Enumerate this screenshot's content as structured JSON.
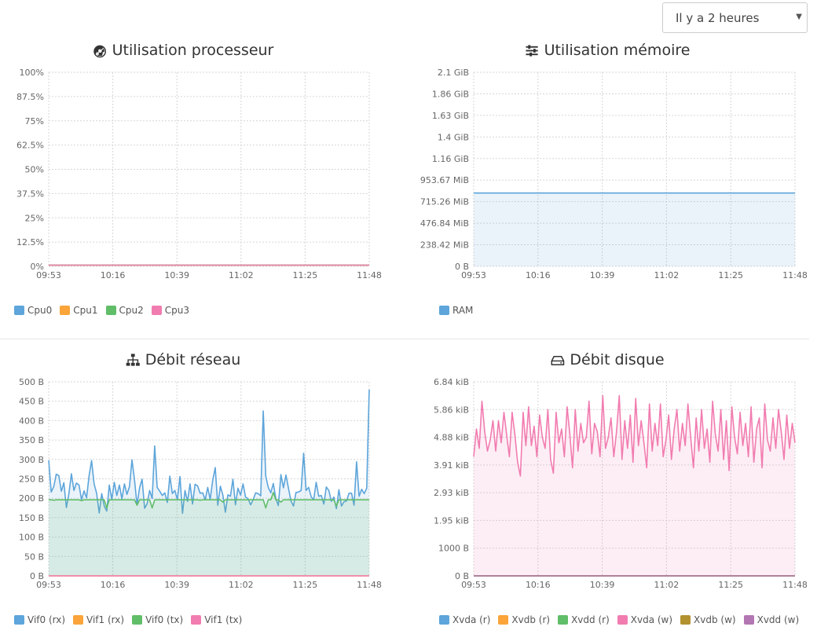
{
  "range_select": {
    "value": "Il y a 2 heures"
  },
  "colors": {
    "blue": "#5da5da",
    "orange": "#faa43a",
    "green": "#60bd68",
    "pink": "#f17cb0",
    "olive": "#b2912f",
    "purple": "#b276b2"
  },
  "chart_data": [
    {
      "id": "cpu",
      "type": "line",
      "title": "Utilisation processeur",
      "icon": "dashboard-icon",
      "x_ticks": [
        "09:53",
        "10:16",
        "10:39",
        "11:02",
        "11:25",
        "11:48"
      ],
      "y_ticks": [
        "100%",
        "87.5%",
        "75%",
        "62.5%",
        "50%",
        "37.5%",
        "25%",
        "12.5%",
        "0%"
      ],
      "ylim": [
        0,
        100
      ],
      "series": [
        {
          "name": "Cpu0",
          "color": "#5da5da",
          "values": [
            0.6,
            0.6,
            0.6,
            0.6,
            0.6,
            0.6
          ]
        },
        {
          "name": "Cpu1",
          "color": "#faa43a",
          "values": [
            0.6,
            0.6,
            0.6,
            0.6,
            0.6,
            0.6
          ]
        },
        {
          "name": "Cpu2",
          "color": "#60bd68",
          "values": [
            0.6,
            0.6,
            0.6,
            0.6,
            0.6,
            0.6
          ]
        },
        {
          "name": "Cpu3",
          "color": "#f17cb0",
          "values": [
            0.6,
            0.6,
            0.6,
            0.6,
            0.6,
            0.6
          ]
        }
      ]
    },
    {
      "id": "mem",
      "type": "area",
      "title": "Utilisation mémoire",
      "icon": "sliders-icon",
      "x_ticks": [
        "09:53",
        "10:16",
        "10:39",
        "11:02",
        "11:25",
        "11:48"
      ],
      "y_ticks": [
        "2.1 GiB",
        "1.86 GiB",
        "1.63 GiB",
        "1.4 GiB",
        "1.16 GiB",
        "953.67 MiB",
        "715.26 MiB",
        "476.84 MiB",
        "238.42 MiB",
        "0 B"
      ],
      "ylim": [
        0,
        9
      ],
      "series": [
        {
          "name": "RAM",
          "color": "#5da5da",
          "values": [
            3.4,
            3.4,
            3.4,
            3.4,
            3.4,
            3.4
          ]
        }
      ]
    },
    {
      "id": "net",
      "type": "area",
      "title": "Débit réseau",
      "icon": "sitemap-icon",
      "x_ticks": [
        "09:53",
        "10:16",
        "10:39",
        "11:02",
        "11:25",
        "11:48"
      ],
      "y_ticks": [
        "500 B",
        "450 B",
        "400 B",
        "350 B",
        "300 B",
        "250 B",
        "200 B",
        "150 B",
        "100 B",
        "50 B",
        "0 B"
      ],
      "ylim": [
        0,
        500
      ],
      "series": [
        {
          "name": "Vif0 (rx)",
          "color": "#5da5da",
          "values": [
            298,
            216,
            230,
            262,
            258,
            218,
            240,
            176,
            212,
            263,
            220,
            239,
            234,
            196,
            219,
            201,
            258,
            297,
            237,
            213,
            162,
            212,
            180,
            167,
            234,
            197,
            241,
            207,
            234,
            198,
            237,
            210,
            230,
            299,
            248,
            183,
            227,
            249,
            174,
            186,
            220,
            199,
            335,
            228,
            218,
            207,
            214,
            189,
            257,
            212,
            220,
            196,
            256,
            161,
            220,
            192,
            237,
            185,
            236,
            232,
            213,
            214,
            196,
            228,
            197,
            247,
            279,
            182,
            231,
            208,
            164,
            209,
            205,
            249,
            183,
            226,
            208,
            237,
            203,
            199,
            183,
            196,
            214,
            212,
            206,
            425,
            257,
            228,
            214,
            238,
            200,
            181,
            261,
            227,
            260,
            226,
            193,
            180,
            215,
            216,
            220,
            316,
            220,
            228,
            204,
            196,
            241,
            205,
            207,
            185,
            229,
            220,
            192,
            203,
            173,
            222,
            180,
            191,
            193,
            213,
            213,
            182,
            294,
            205,
            223,
            212,
            226,
            480
          ]
        },
        {
          "name": "Vif1 (rx)",
          "color": "#faa43a",
          "values": [
            0,
            0,
            0,
            0,
            0,
            0
          ]
        },
        {
          "name": "Vif0 (tx)",
          "color": "#60bd68",
          "values": [
            196,
            196,
            195,
            196,
            196,
            196,
            196,
            196,
            196,
            196,
            196,
            196,
            196,
            194,
            196,
            196,
            196,
            196,
            196,
            196,
            196,
            196,
            196,
            175,
            196,
            196,
            196,
            196,
            196,
            196,
            196,
            196,
            196,
            196,
            196,
            182,
            196,
            196,
            196,
            196,
            196,
            175,
            196,
            196,
            196,
            196,
            196,
            196,
            196,
            196,
            196,
            196,
            196,
            196,
            196,
            196,
            196,
            196,
            196,
            196,
            195,
            196,
            196,
            196,
            196,
            196,
            196,
            196,
            196,
            190,
            196,
            196,
            196,
            196,
            196,
            196,
            196,
            196,
            196,
            196,
            196,
            196,
            196,
            196,
            196,
            196,
            175,
            196,
            196,
            215,
            196,
            196,
            190,
            196,
            196,
            196,
            196,
            196,
            196,
            196,
            196,
            196,
            196,
            196,
            196,
            196,
            196,
            196,
            196,
            196,
            196,
            196,
            196,
            196,
            180,
            196,
            196,
            196,
            196,
            196,
            196,
            196,
            196,
            196,
            196,
            196,
            196,
            196
          ]
        },
        {
          "name": "Vif1 (tx)",
          "color": "#f17cb0",
          "values": [
            0,
            0,
            0,
            0,
            0,
            0
          ]
        }
      ]
    },
    {
      "id": "disk",
      "type": "area",
      "title": "Débit disque",
      "icon": "hdd-icon",
      "x_ticks": [
        "09:53",
        "10:16",
        "10:39",
        "11:02",
        "11:25",
        "11:48"
      ],
      "y_ticks": [
        "6.84 kiB",
        "5.86 kiB",
        "4.88 kiB",
        "3.91 kiB",
        "2.93 kiB",
        "1.95 kiB",
        "1000 B",
        "0 B"
      ],
      "ylim": [
        0,
        7
      ],
      "series": [
        {
          "name": "Xvda (r)",
          "color": "#5da5da",
          "values": [
            0,
            0,
            0,
            0,
            0,
            0
          ]
        },
        {
          "name": "Xvdb (r)",
          "color": "#faa43a",
          "values": [
            0,
            0,
            0,
            0,
            0,
            0
          ]
        },
        {
          "name": "Xvdd (r)",
          "color": "#60bd68",
          "values": [
            0,
            0,
            0,
            0,
            0,
            0
          ]
        },
        {
          "name": "Xvda (w)",
          "color": "#f17cb0",
          "values": [
            4.3,
            5.3,
            4.6,
            6.3,
            5.2,
            4.5,
            4.9,
            5.6,
            4.5,
            5.6,
            4.8,
            5.9,
            5.1,
            4.3,
            5.9,
            5.1,
            4.1,
            3.6,
            5.9,
            4.7,
            6.1,
            4.7,
            5.4,
            4.3,
            5.8,
            5.0,
            4.6,
            6.0,
            4.2,
            3.7,
            5.9,
            4.8,
            5.3,
            4.3,
            6.1,
            5.1,
            3.9,
            6.0,
            4.5,
            5.5,
            4.8,
            5.0,
            6.3,
            4.4,
            5.5,
            5.2,
            4.3,
            6.5,
            4.6,
            5.0,
            5.7,
            4.3,
            5.2,
            6.5,
            4.2,
            5.6,
            4.6,
            5.8,
            4.1,
            6.4,
            4.7,
            5.6,
            4.8,
            3.9,
            6.2,
            4.5,
            5.5,
            4.7,
            6.2,
            4.3,
            4.9,
            5.8,
            4.2,
            5.3,
            6.0,
            4.5,
            5.5,
            4.7,
            6.2,
            5.0,
            3.9,
            5.7,
            4.5,
            6.0,
            4.6,
            5.3,
            4.1,
            6.3,
            5.1,
            4.5,
            6.0,
            4.2,
            5.6,
            3.8,
            6.1,
            5.0,
            4.4,
            5.9,
            4.7,
            5.5,
            4.3,
            6.1,
            4.1,
            5.3,
            5.7,
            3.9,
            6.2,
            4.9,
            4.5,
            5.7,
            4.6,
            6.0,
            5.2,
            4.2,
            5.8,
            4.6,
            5.5,
            4.8
          ]
        },
        {
          "name": "Xvdb (w)",
          "color": "#b2912f",
          "values": [
            0,
            0,
            0,
            0,
            0,
            0
          ]
        },
        {
          "name": "Xvdd (w)",
          "color": "#b276b2",
          "values": [
            0,
            0,
            0,
            0,
            0,
            0
          ]
        }
      ]
    }
  ]
}
